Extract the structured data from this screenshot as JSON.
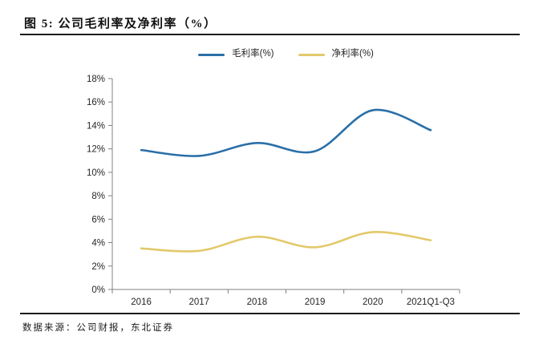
{
  "figure": {
    "title": "图 5: 公司毛利率及净利率（%）",
    "source": "数据来源：公司财报，东北证券"
  },
  "chart_data": {
    "type": "line",
    "title": "公司毛利率及净利率（%）",
    "categories": [
      "2016",
      "2017",
      "2018",
      "2019",
      "2020",
      "2021Q1-Q3"
    ],
    "series": [
      {
        "key": "gross-margin",
        "name": "毛利率(%)",
        "color": "#2a6fa8",
        "values": [
          11.9,
          11.4,
          12.5,
          11.8,
          15.3,
          13.6
        ]
      },
      {
        "key": "net-margin",
        "name": "净利率(%)",
        "color": "#e3c96b",
        "values": [
          3.5,
          3.3,
          4.5,
          3.6,
          4.9,
          4.2
        ]
      }
    ],
    "ylim": [
      0,
      18
    ],
    "ytick_step": 2,
    "ytick_suffix": "%",
    "grid": false,
    "smooth": true,
    "legend_position": "top-center",
    "axis_color": "#808080",
    "label_color": "#262626"
  }
}
